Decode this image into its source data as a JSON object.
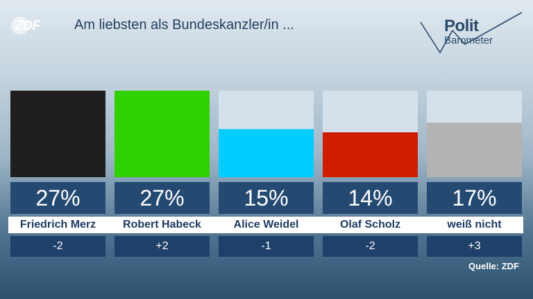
{
  "header": {
    "logo": "ZDF",
    "title": "Am liebsten als Bundeskanzler/in ...",
    "brand_line1": "Polit",
    "brand_line2": "Barometer"
  },
  "source": "Quelle: ZDF",
  "chart_data": {
    "type": "bar",
    "title": "Am liebsten als Bundeskanzler/in ...",
    "unit": "%",
    "ylim": [
      0,
      27
    ],
    "categories": [
      "Friedrich Merz",
      "Robert Habeck",
      "Alice Weidel",
      "Olaf Scholz",
      "weiß nicht"
    ],
    "values": [
      27,
      27,
      15,
      14,
      17
    ],
    "value_labels": [
      "27%",
      "27%",
      "15%",
      "14%",
      "17%"
    ],
    "change_labels": [
      "-2",
      "+2",
      "-1",
      "-2",
      "+3"
    ],
    "colors": [
      "#1f1f1f",
      "#2fd200",
      "#00ccff",
      "#d01c00",
      "#b3b3b3"
    ],
    "track_color": "#d5e1ea",
    "grid": false,
    "legend": "none"
  }
}
